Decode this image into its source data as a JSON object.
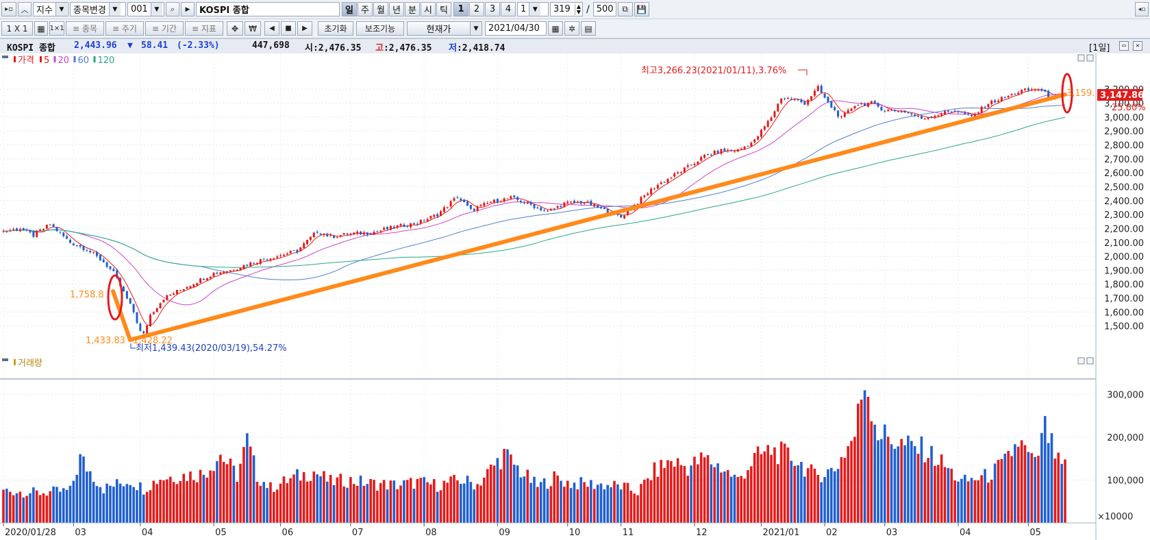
{
  "toolbar_top": {
    "market_type": "지수",
    "change_item_label": "종목변경",
    "code": "001",
    "name": "KOSPI 종합",
    "periods": [
      "일",
      "주",
      "월",
      "년",
      "분",
      "시",
      "틱"
    ],
    "active_period": "일",
    "minute_presets": [
      "1",
      "2",
      "3",
      "4"
    ],
    "tick_value": "1",
    "count": "319",
    "separator": "/",
    "max_count": "500"
  },
  "toolbar_bottom": {
    "layout_label": "1 X 1",
    "item_label": "≡ 종목",
    "cycle_label": "≡ 주기",
    "period_label": "≡ 기간",
    "indicator_label": "≡ 지표",
    "currency_label": "₩",
    "reset_label": "초기화",
    "aux_label": "보조기능",
    "price_type": "현재가",
    "date": "2021/04/30"
  },
  "infobar": {
    "name": "KOSPI 종합",
    "price": "2,443.96",
    "change_arrow": "▼",
    "change": "58.41",
    "change_pct": "(-2.33%)",
    "volume": "447,698",
    "open_label": "시:",
    "open": "2,476.35",
    "high_label": "고",
    "high": ":2,476.35",
    "low_label": "저",
    "low": ":2,418.74",
    "period_badge": "[1일]"
  },
  "price_pane": {
    "legend": [
      {
        "label": "가격",
        "color": "#e31b1b"
      },
      {
        "label": "5",
        "color": "#e31b1b"
      },
      {
        "label": "20",
        "color": "#cc44cc"
      },
      {
        "label": "60",
        "color": "#4f7fd0"
      },
      {
        "label": "120",
        "color": "#2aa78a"
      }
    ],
    "high_annotation": "최고3,266.23(2021/01/11),3.76%",
    "low_annotation": "최저1,439.43(2020/03/19),54.27%",
    "line_start_label": "1,758.8",
    "line_low_label_a": "1,433.83",
    "line_low_label_b": "1,428.22",
    "line_end_label": "3,159.",
    "current_price_label": "3,147.86",
    "current_pct_label": "25.80%"
  },
  "volume_pane": {
    "legend_label": "거래량",
    "unit_label": "×10000"
  },
  "chart_data": {
    "type": "candlestick",
    "title": "KOSPI 종합",
    "x_tick_labels": [
      "2020/01/28",
      "03",
      "04",
      "05",
      "06",
      "07",
      "08",
      "09",
      "10",
      "11",
      "12",
      "2021/01",
      "02",
      "03",
      "04",
      "05"
    ],
    "price_ticks": [
      "3,200.00",
      "3,100.00",
      "3,000.00",
      "2,900.00",
      "2,800.00",
      "2,700.00",
      "2,600.00",
      "2,500.00",
      "2,400.00",
      "2,300.00",
      "2,200.00",
      "2,100.00",
      "2,000.00",
      "1,900.00",
      "1,800.00",
      "1,700.00",
      "1,600.00",
      "1,500.00"
    ],
    "price_range": [
      1400,
      3270
    ],
    "volume_ticks": [
      "300,000",
      "200,000",
      "100,000"
    ],
    "volume_range": [
      0,
      360000
    ],
    "price_points": [
      [
        0,
        2180
      ],
      [
        5,
        2200
      ],
      [
        9,
        2150
      ],
      [
        14,
        2230
      ],
      [
        20,
        2100
      ],
      [
        25,
        2050
      ],
      [
        30,
        1960
      ],
      [
        33,
        1880
      ],
      [
        36,
        1740
      ],
      [
        39,
        1600
      ],
      [
        41,
        1460
      ],
      [
        42,
        1439
      ],
      [
        44,
        1580
      ],
      [
        48,
        1700
      ],
      [
        53,
        1760
      ],
      [
        58,
        1820
      ],
      [
        63,
        1880
      ],
      [
        68,
        1900
      ],
      [
        75,
        1960
      ],
      [
        80,
        1990
      ],
      [
        88,
        2040
      ],
      [
        94,
        2180
      ],
      [
        98,
        2140
      ],
      [
        103,
        2160
      ],
      [
        110,
        2170
      ],
      [
        117,
        2210
      ],
      [
        124,
        2240
      ],
      [
        130,
        2300
      ],
      [
        136,
        2430
      ],
      [
        140,
        2330
      ],
      [
        146,
        2390
      ],
      [
        152,
        2420
      ],
      [
        158,
        2370
      ],
      [
        163,
        2320
      ],
      [
        168,
        2380
      ],
      [
        174,
        2390
      ],
      [
        180,
        2330
      ],
      [
        185,
        2280
      ],
      [
        190,
        2390
      ],
      [
        195,
        2500
      ],
      [
        200,
        2570
      ],
      [
        205,
        2640
      ],
      [
        210,
        2720
      ],
      [
        215,
        2760
      ],
      [
        220,
        2760
      ],
      [
        225,
        2830
      ],
      [
        230,
        3000
      ],
      [
        233,
        3140
      ],
      [
        236,
        3130
      ],
      [
        240,
        3100
      ],
      [
        244,
        3210
      ],
      [
        247,
        3100
      ],
      [
        251,
        2990
      ],
      [
        255,
        3090
      ],
      [
        260,
        3100
      ],
      [
        264,
        3050
      ],
      [
        270,
        3040
      ],
      [
        275,
        2990
      ],
      [
        280,
        3020
      ],
      [
        285,
        3050
      ],
      [
        290,
        3000
      ],
      [
        295,
        3100
      ],
      [
        300,
        3140
      ],
      [
        305,
        3190
      ],
      [
        310,
        3200
      ],
      [
        314,
        3140
      ],
      [
        318,
        3147
      ]
    ],
    "volume_points": [
      [
        0,
        76000
      ],
      [
        10,
        70000
      ],
      [
        20,
        75000
      ],
      [
        23,
        150000
      ],
      [
        30,
        80000
      ],
      [
        38,
        100000
      ],
      [
        42,
        80000
      ],
      [
        47,
        105000
      ],
      [
        53,
        110000
      ],
      [
        60,
        115000
      ],
      [
        65,
        160000
      ],
      [
        70,
        110000
      ],
      [
        73,
        190000
      ],
      [
        76,
        110000
      ],
      [
        80,
        82000
      ],
      [
        88,
        108000
      ],
      [
        93,
        120000
      ],
      [
        98,
        95000
      ],
      [
        103,
        100000
      ],
      [
        110,
        92000
      ],
      [
        118,
        88000
      ],
      [
        124,
        95000
      ],
      [
        130,
        88000
      ],
      [
        137,
        100000
      ],
      [
        142,
        90000
      ],
      [
        150,
        160000
      ],
      [
        155,
        120000
      ],
      [
        160,
        85000
      ],
      [
        165,
        105000
      ],
      [
        170,
        92000
      ],
      [
        178,
        90000
      ],
      [
        185,
        85000
      ],
      [
        190,
        72000
      ],
      [
        195,
        120000
      ],
      [
        200,
        145000
      ],
      [
        205,
        130000
      ],
      [
        210,
        150000
      ],
      [
        215,
        130000
      ],
      [
        220,
        100000
      ],
      [
        225,
        150000
      ],
      [
        230,
        170000
      ],
      [
        237,
        150000
      ],
      [
        243,
        110000
      ],
      [
        249,
        125000
      ],
      [
        255,
        205000
      ],
      [
        258,
        340000
      ],
      [
        262,
        210000
      ],
      [
        270,
        180000
      ],
      [
        276,
        170000
      ],
      [
        281,
        140000
      ],
      [
        287,
        95000
      ],
      [
        295,
        110000
      ],
      [
        300,
        140000
      ],
      [
        304,
        190000
      ],
      [
        309,
        135000
      ],
      [
        312,
        220000
      ],
      [
        316,
        140000
      ],
      [
        318,
        130000
      ]
    ],
    "moving_averages": [
      "5",
      "20",
      "60",
      "120"
    ]
  }
}
